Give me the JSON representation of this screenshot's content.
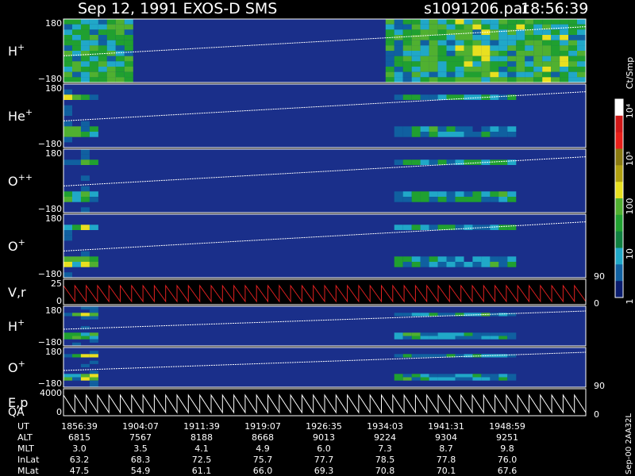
{
  "header": {
    "title": "Sep 12, 1991   EXOS-D SMS",
    "file": "s1091206.par",
    "time": "18:56:39"
  },
  "colors": {
    "background": "#1a2f8a",
    "dark": "#0a1c6e",
    "frame": "#ffffff",
    "velocity_trace": "#e02020"
  },
  "chart_data": {
    "type": "heatmap",
    "panels": [
      {
        "label": "H",
        "superscript": "+",
        "ytick_top": "180",
        "ytick_bottom": "−180",
        "kind": "spectrogram"
      },
      {
        "label": "He",
        "superscript": "+",
        "ytick_top": "180",
        "ytick_bottom": "−180",
        "kind": "spectrogram"
      },
      {
        "label": "O",
        "superscript": "++",
        "ytick_top": "180",
        "ytick_bottom": "−180",
        "kind": "spectrogram"
      },
      {
        "label": "O",
        "superscript": "+",
        "ytick_top": "180",
        "ytick_bottom": "−180",
        "kind": "spectrogram",
        "right_tick": "90"
      },
      {
        "label": "V,r",
        "superscript": "",
        "ytick_top": "25",
        "ytick_bottom": "0",
        "kind": "line",
        "right_tick": "0"
      },
      {
        "label": "H",
        "superscript": "+",
        "ytick_top": "180",
        "ytick_bottom": "−180",
        "kind": "spectrogram"
      },
      {
        "label": "O",
        "superscript": "+",
        "ytick_top": "180",
        "ytick_bottom": "−180",
        "kind": "spectrogram",
        "right_tick": "90"
      },
      {
        "label": "E,p",
        "label2": "QA",
        "superscript": "",
        "ytick_top": "4000",
        "ytick_bottom": "0",
        "kind": "line",
        "right_tick": "0"
      }
    ],
    "colorbar": {
      "label": "Ct/Smp",
      "ticks": [
        "10⁴",
        "10³",
        "100",
        "10",
        "1"
      ],
      "colors": [
        "#ffffff",
        "#d01818",
        "#e8201a",
        "#8a7a10",
        "#b0a010",
        "#e8e020",
        "#50b030",
        "#20a030",
        "#108040",
        "#20a8c8",
        "#1060a0",
        "#0a1c6e"
      ]
    },
    "x_axis": {
      "rows": [
        {
          "name": "UT",
          "values": [
            "1856:39",
            "1904:07",
            "1911:39",
            "1919:07",
            "1926:35",
            "1934:03",
            "1941:31",
            "1948:59"
          ]
        },
        {
          "name": "ALT",
          "values": [
            "6815",
            "7567",
            "8188",
            "8668",
            "9013",
            "9224",
            "9304",
            "9251"
          ]
        },
        {
          "name": "MLT",
          "values": [
            "3.0",
            "3.5",
            "4.1",
            "4.9",
            "6.0",
            "7.3",
            "8.7",
            "9.8"
          ]
        },
        {
          "name": "InLat",
          "values": [
            "63.2",
            "68.3",
            "72.5",
            "75.7",
            "77.7",
            "78.5",
            "77.8",
            "76.0"
          ]
        },
        {
          "name": "MLat",
          "values": [
            "47.5",
            "54.9",
            "61.1",
            "66.0",
            "69.3",
            "70.8",
            "70.1",
            "67.6"
          ]
        }
      ]
    },
    "side_note": "Sep-00 2AA32L"
  }
}
